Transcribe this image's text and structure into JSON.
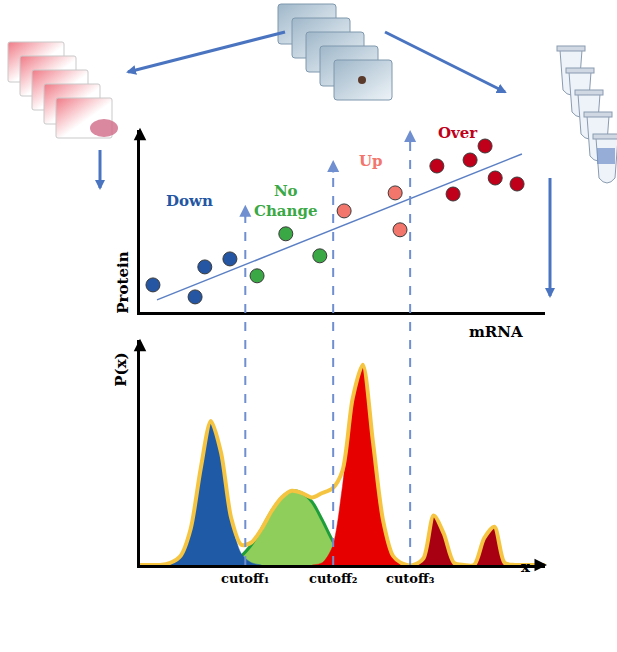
{
  "chart_data": [
    {
      "type": "scatter",
      "xlabel": "mRNA",
      "ylabel": "Protein",
      "xlim": [
        0,
        10
      ],
      "ylim": [
        0,
        10
      ],
      "tick_labels": false,
      "grid": false,
      "series": [
        {
          "name": "Down",
          "color": "#2456a4",
          "x": [
            0.32,
            1.36,
            1.6,
            2.22
          ],
          "values": [
            1.48,
            0.82,
            2.47,
            2.91
          ]
        },
        {
          "name": "No Change",
          "color": "#3aa845",
          "x": [
            2.89,
            3.6,
            4.44
          ],
          "values": [
            1.98,
            4.29,
            3.08
          ]
        },
        {
          "name": "Up",
          "color": "#f2766c",
          "x": [
            5.04,
            6.3,
            6.42
          ],
          "values": [
            5.55,
            6.54,
            4.51
          ]
        },
        {
          "name": "Over",
          "color": "#c0001a",
          "x": [
            7.33,
            7.73,
            8.15,
            8.52,
            8.77,
            9.31
          ],
          "values": [
            8.02,
            6.48,
            8.35,
            9.12,
            7.36,
            7.03
          ]
        },
        {
          "type": "line",
          "color": "#5b7fc4",
          "x": [
            0.42,
            9.43
          ],
          "values": [
            0.66,
            8.68
          ]
        }
      ]
    },
    {
      "type": "area",
      "xlabel": "x",
      "ylabel": "P(x)",
      "xlim": [
        0,
        10
      ],
      "ylim": [
        0,
        10
      ],
      "tick_labels": false,
      "grid": false,
      "x": [
        0,
        0.25,
        0.5,
        0.75,
        1,
        1.25,
        1.5,
        1.75,
        2,
        2.25,
        2.5,
        2.75,
        3,
        3.25,
        3.5,
        3.75,
        4,
        4.25,
        4.5,
        4.75,
        5,
        5.25,
        5.5,
        5.75,
        6,
        6.25,
        6.5,
        6.75,
        7,
        7.25,
        7.5,
        7.75,
        8,
        8.25,
        8.5,
        8.75,
        9,
        9.25,
        9.5,
        9.75,
        10
      ],
      "series": [
        {
          "color": "#8fce5a",
          "line_style": "solid",
          "values": [
            null,
            null,
            null,
            null,
            null,
            null,
            null,
            null,
            0,
            0.1,
            0.4,
            0.9,
            1.6,
            2.4,
            3.0,
            3.3,
            3.2,
            2.8,
            2.0,
            1.1,
            0.4,
            0.1,
            0,
            null,
            null,
            null,
            null,
            null,
            null,
            null,
            null,
            null,
            null,
            null,
            null,
            null,
            null,
            null,
            null,
            null,
            null
          ]
        },
        {
          "color": "#e60000",
          "values": [
            null,
            null,
            null,
            null,
            null,
            null,
            null,
            null,
            null,
            null,
            null,
            null,
            null,
            null,
            null,
            null,
            null,
            0,
            0.1,
            0.8,
            3.5,
            7.3,
            8.9,
            5.5,
            2.0,
            0.4,
            0.05,
            0,
            null,
            null,
            null,
            null,
            null,
            null,
            null,
            null,
            null,
            null,
            null,
            null,
            null
          ]
        },
        {
          "color": "#a80012",
          "values": [
            null,
            null,
            null,
            null,
            null,
            null,
            null,
            null,
            null,
            null,
            null,
            null,
            null,
            null,
            null,
            null,
            null,
            null,
            null,
            null,
            null,
            null,
            null,
            null,
            null,
            null,
            null,
            0,
            0.3,
            2.2,
            1.4,
            0.1,
            0,
            0,
            1.2,
            1.7,
            0.1,
            0,
            null,
            null,
            null
          ]
        },
        {
          "color": "#1f5aa6",
          "values": [
            null,
            null,
            0,
            0.1,
            0.4,
            1.6,
            4.3,
            6.4,
            5.0,
            2.0,
            0.5,
            0.1,
            0,
            null,
            null,
            null,
            null,
            null,
            null,
            null,
            null,
            null,
            null,
            null,
            null,
            null,
            null,
            null,
            null,
            null,
            null,
            null,
            null,
            null,
            null,
            null,
            null,
            null,
            null,
            null,
            null
          ]
        },
        {
          "type": "line",
          "color": "#f5c542",
          "values": [
            0,
            0,
            0,
            0.1,
            0.4,
            1.6,
            4.3,
            6.4,
            5.0,
            2.1,
            0.9,
            1.0,
            1.6,
            2.4,
            3.0,
            3.3,
            3.2,
            3.0,
            3.2,
            3.4,
            4.2,
            7.4,
            8.9,
            5.5,
            2.0,
            0.4,
            0.05,
            0,
            0.3,
            2.2,
            1.4,
            0.1,
            0,
            0,
            1.2,
            1.7,
            0.1,
            0,
            0,
            0,
            0
          ]
        }
      ],
      "cutoffs": [
        {
          "label": "cutoff₁",
          "value": 2.6
        },
        {
          "label": "cutoff₂",
          "value": 4.77
        },
        {
          "label": "cutoff₃",
          "value": 6.67
        }
      ]
    }
  ]
}
